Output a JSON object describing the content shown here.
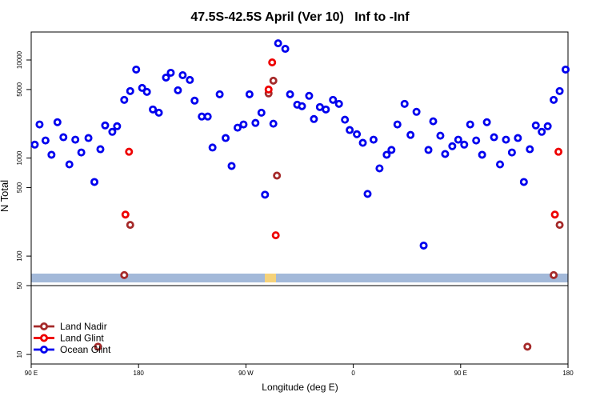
{
  "chart_data": [
    {
      "type": "scatter",
      "title": "47.5S-42.5S April (Ver 10)   Inf to -Inf",
      "ylabel": "N Total",
      "log_y": true,
      "xlim": [
        90,
        540
      ],
      "ylim": [
        50,
        19300
      ],
      "yticks": [
        100,
        500,
        1000,
        5000,
        10000
      ],
      "series": [
        {
          "color": "#a52a2a",
          "x": [
            173,
            293,
            296,
            289,
            168,
            533,
            528
          ],
          "values": [
            208,
            6150,
            662,
            4560,
            64,
            208,
            64
          ]
        },
        {
          "color": "#ee0000",
          "x": [
            172,
            169,
            292,
            289,
            295,
            532,
            529
          ],
          "values": [
            1160,
            265,
            9450,
            5000,
            163,
            1160,
            265
          ]
        },
        {
          "color": "#0000ee",
          "x": [
            93,
            97,
            102,
            107,
            112,
            117,
            122,
            127,
            132,
            138,
            143,
            148,
            152,
            158,
            162,
            168,
            173,
            178,
            183,
            187,
            192,
            197,
            203,
            207,
            213,
            217,
            223,
            227,
            233,
            238,
            242,
            248,
            253,
            258,
            263,
            268,
            273,
            278,
            283,
            286,
            293,
            297,
            303,
            307,
            313,
            317,
            323,
            327,
            332,
            337,
            343,
            348,
            353,
            357,
            363,
            368,
            372,
            377,
            382,
            388,
            392,
            397,
            403,
            408,
            413,
            419,
            423,
            427,
            433,
            437,
            443,
            448,
            453,
            458,
            463,
            468,
            472,
            478,
            483,
            488,
            493,
            498,
            503,
            508,
            513,
            518,
            523,
            528,
            533,
            538
          ],
          "values": [
            1370,
            2200,
            1510,
            1080,
            2320,
            1630,
            861,
            1540,
            1140,
            1600,
            570,
            1230,
            2150,
            1850,
            2110,
            3920,
            4820,
            7990,
            5190,
            4730,
            3130,
            2900,
            6620,
            7410,
            4910,
            7000,
            6260,
            3850,
            2650,
            2650,
            1280,
            4470,
            1600,
            830,
            2040,
            2200,
            4470,
            2280,
            2900,
            423,
            2240,
            14800,
            13000,
            4470,
            3500,
            3380,
            4310,
            2500,
            3310,
            3130,
            3920,
            3570,
            2460,
            1930,
            1750,
            1430,
            431,
            1540,
            784,
            1080,
            1210,
            2200,
            3570,
            1720,
            2960,
            128,
            1210,
            2370,
            1690,
            1100,
            1320,
            1540,
            1370,
            2200,
            1510,
            1080,
            2320,
            1630,
            861,
            1540,
            1140,
            1600,
            570,
            1230,
            2150,
            1850,
            2110,
            3920,
            4820,
            7990
          ]
        }
      ]
    },
    {
      "type": "scatter",
      "xlabel": "Longitude (deg E)",
      "log_y": true,
      "legend": "bottom-left",
      "xlim": [
        90,
        540
      ],
      "xticks": [
        {
          "value": 90,
          "label": "90 E"
        },
        180,
        {
          "value": 270,
          "label": "90 W"
        },
        {
          "value": 360,
          "label": "0"
        },
        {
          "value": 450,
          "label": "90 E"
        },
        {
          "value": 540,
          "label": "180"
        }
      ],
      "ylim": [
        8,
        50
      ],
      "yticks": [
        10,
        50
      ],
      "series": [
        {
          "name": "Land Nadir",
          "color": "#a52a2a",
          "x": [
            146,
            506
          ],
          "values": [
            12,
            12
          ]
        },
        {
          "name": "Land Glint",
          "color": "#ee0000",
          "x": [],
          "values": []
        },
        {
          "name": "Ocean Glint",
          "color": "#0000ee",
          "x": [],
          "values": []
        }
      ]
    }
  ]
}
